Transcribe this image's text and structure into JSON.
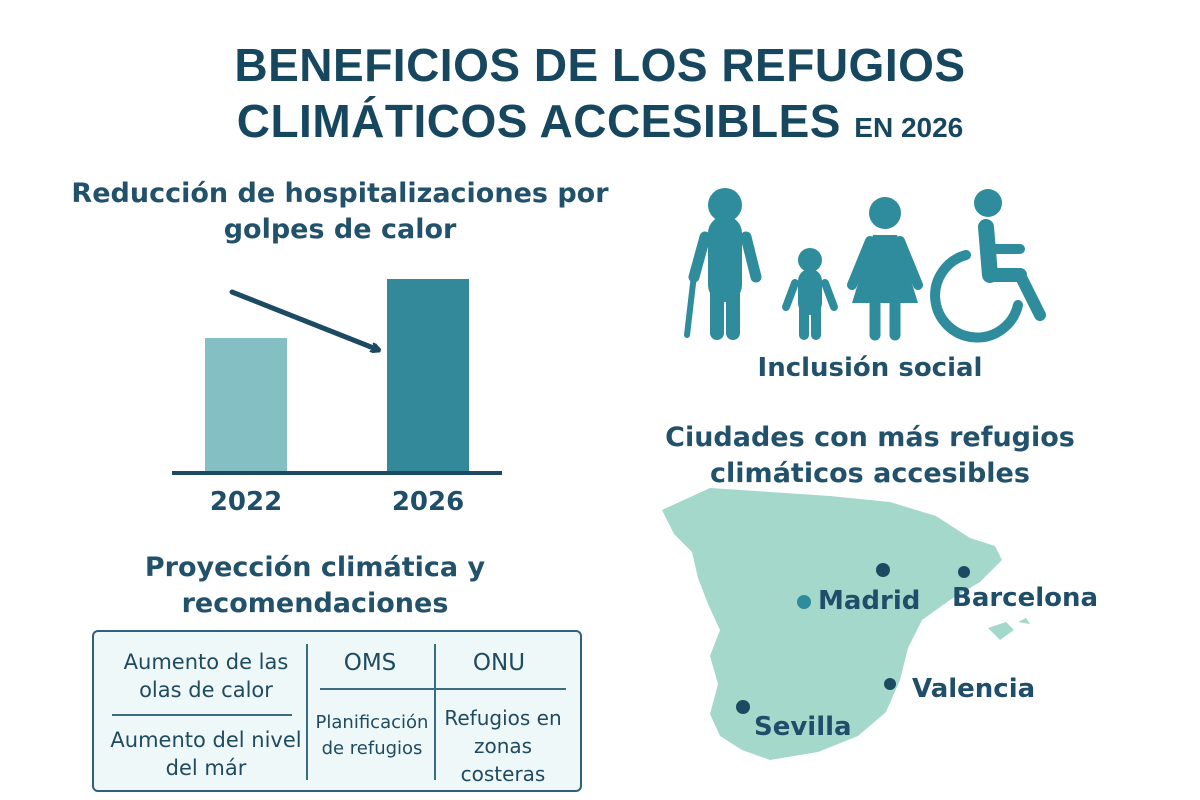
{
  "title": {
    "line1": "BENEFICIOS DE LOS REFUGIOS",
    "line2": "CLIMÁTICOS ACCESIBLES",
    "suffix": "EN 2026"
  },
  "chart": {
    "title": "Reducción de hospitalizaciones por golpes de calor",
    "years": [
      "2022",
      "2026"
    ],
    "colors": {
      "bar_2022": "#84bfc4",
      "bar_2026": "#33899a",
      "axis": "#1c4a63"
    }
  },
  "inclusion": {
    "label": "Inclusión social",
    "color": "#2e8c9c"
  },
  "map": {
    "title": "Ciudades con más refugios climáticos accesibles",
    "land_color": "#a4d8ca",
    "cities": [
      {
        "name": "Madrid"
      },
      {
        "name": "Barcelona"
      },
      {
        "name": "Valencia"
      },
      {
        "name": "Sevilla"
      }
    ]
  },
  "projection": {
    "title": "Proyección climática y recomendaciones",
    "left": [
      "Aumento de las olas de calor",
      "Aumento del nivel del már"
    ],
    "orgs": [
      "OMS",
      "ONU"
    ],
    "recs": [
      "Planificación de refugios",
      "Refugios en zonas costeras"
    ]
  }
}
